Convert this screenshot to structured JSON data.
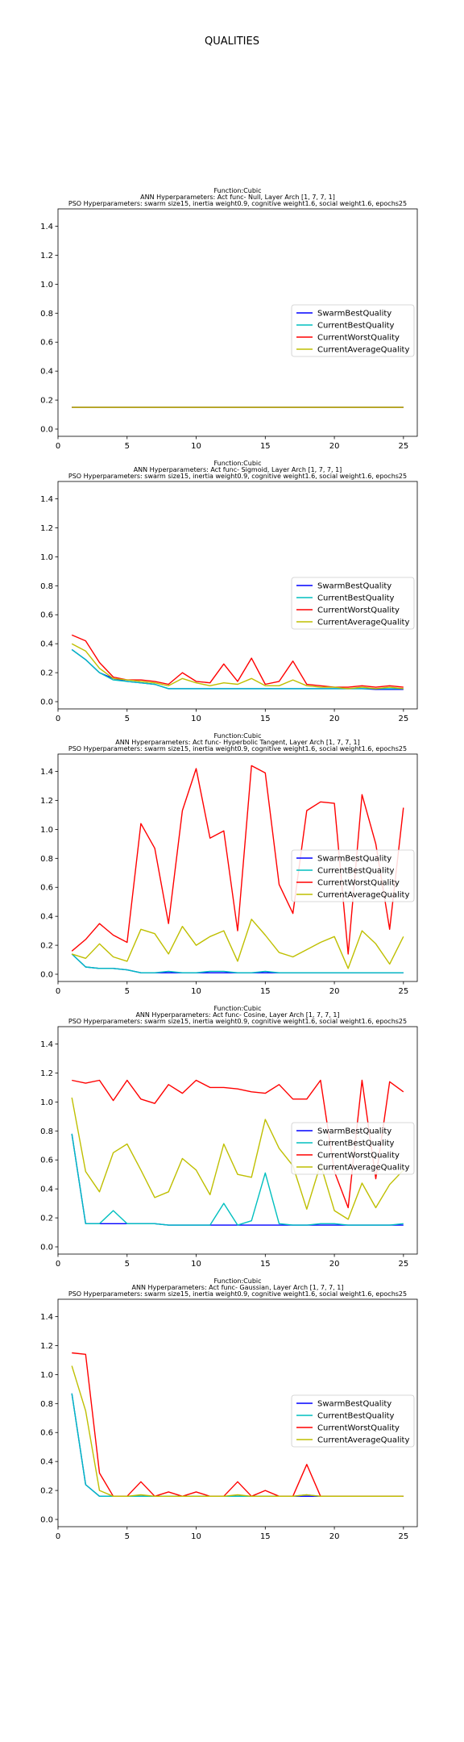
{
  "figure_title": "QUALITIES",
  "chart_data": [
    {
      "type": "line",
      "title_lines": [
        "Function:Cubic",
        "ANN Hyperparameters: Act func- Null, Layer Arch [1, 7, 7, 1]",
        "PSO Hyperparameters: swarm size15, inertia weight0.9, cognitive weight1.6, social weight1.6, epochs25"
      ],
      "x": [
        1,
        2,
        3,
        4,
        5,
        6,
        7,
        8,
        9,
        10,
        11,
        12,
        13,
        14,
        15,
        16,
        17,
        18,
        19,
        20,
        21,
        22,
        23,
        24,
        25
      ],
      "xlim": [
        0,
        26
      ],
      "ylim": [
        -0.05,
        1.52
      ],
      "xticks": [
        0,
        5,
        10,
        15,
        20,
        25
      ],
      "yticks": [
        "0.0",
        "0.2",
        "0.4",
        "0.6",
        "0.8",
        "1.0",
        "1.2",
        "1.4"
      ],
      "legend_position": "center-right",
      "series": [
        {
          "name": "SwarmBestQuality",
          "color": "#0000ff",
          "values": [
            0.15,
            0.15,
            0.15,
            0.15,
            0.15,
            0.15,
            0.15,
            0.15,
            0.15,
            0.15,
            0.15,
            0.15,
            0.15,
            0.15,
            0.15,
            0.15,
            0.15,
            0.15,
            0.15,
            0.15,
            0.15,
            0.15,
            0.15,
            0.15,
            0.15
          ]
        },
        {
          "name": "CurrentBestQuality",
          "color": "#00bfbf",
          "values": [
            0.15,
            0.15,
            0.15,
            0.15,
            0.15,
            0.15,
            0.15,
            0.15,
            0.15,
            0.15,
            0.15,
            0.15,
            0.15,
            0.15,
            0.15,
            0.15,
            0.15,
            0.15,
            0.15,
            0.15,
            0.15,
            0.15,
            0.15,
            0.15,
            0.15
          ]
        },
        {
          "name": "CurrentWorstQuality",
          "color": "#ff0000",
          "values": [
            0.15,
            0.15,
            0.15,
            0.15,
            0.15,
            0.15,
            0.15,
            0.15,
            0.15,
            0.15,
            0.15,
            0.15,
            0.15,
            0.15,
            0.15,
            0.15,
            0.15,
            0.15,
            0.15,
            0.15,
            0.15,
            0.15,
            0.15,
            0.15,
            0.15
          ]
        },
        {
          "name": "CurrentAverageQuality",
          "color": "#bfbf00",
          "values": [
            0.15,
            0.15,
            0.15,
            0.15,
            0.15,
            0.15,
            0.15,
            0.15,
            0.15,
            0.15,
            0.15,
            0.15,
            0.15,
            0.15,
            0.15,
            0.15,
            0.15,
            0.15,
            0.15,
            0.15,
            0.15,
            0.15,
            0.15,
            0.15,
            0.15
          ]
        }
      ]
    },
    {
      "type": "line",
      "title_lines": [
        "Function:Cubic",
        "ANN Hyperparameters: Act func- Sigmoid, Layer Arch [1, 7, 7, 1]",
        "PSO Hyperparameters: swarm size15, inertia weight0.9, cognitive weight1.6, social weight1.6, epochs25"
      ],
      "x": [
        1,
        2,
        3,
        4,
        5,
        6,
        7,
        8,
        9,
        10,
        11,
        12,
        13,
        14,
        15,
        16,
        17,
        18,
        19,
        20,
        21,
        22,
        23,
        24,
        25
      ],
      "xlim": [
        0,
        26
      ],
      "ylim": [
        -0.05,
        1.52
      ],
      "xticks": [
        0,
        5,
        10,
        15,
        20,
        25
      ],
      "yticks": [
        "0.0",
        "0.2",
        "0.4",
        "0.6",
        "0.8",
        "1.0",
        "1.2",
        "1.4"
      ],
      "legend_position": "center-right",
      "series": [
        {
          "name": "SwarmBestQuality",
          "color": "#0000ff",
          "values": [
            0.36,
            0.29,
            0.2,
            0.16,
            0.14,
            0.13,
            0.12,
            0.09,
            0.09,
            0.09,
            0.09,
            0.09,
            0.09,
            0.09,
            0.09,
            0.09,
            0.09,
            0.09,
            0.09,
            0.09,
            0.09,
            0.09,
            0.085,
            0.085,
            0.085
          ]
        },
        {
          "name": "CurrentBestQuality",
          "color": "#00bfbf",
          "values": [
            0.36,
            0.29,
            0.2,
            0.15,
            0.14,
            0.13,
            0.12,
            0.09,
            0.09,
            0.09,
            0.09,
            0.09,
            0.09,
            0.09,
            0.09,
            0.09,
            0.09,
            0.09,
            0.09,
            0.09,
            0.09,
            0.09,
            0.09,
            0.09,
            0.09
          ]
        },
        {
          "name": "CurrentWorstQuality",
          "color": "#ff0000",
          "values": [
            0.46,
            0.42,
            0.27,
            0.17,
            0.15,
            0.15,
            0.14,
            0.12,
            0.2,
            0.14,
            0.13,
            0.26,
            0.14,
            0.3,
            0.12,
            0.14,
            0.28,
            0.12,
            0.11,
            0.1,
            0.1,
            0.11,
            0.1,
            0.11,
            0.1
          ]
        },
        {
          "name": "CurrentAverageQuality",
          "color": "#bfbf00",
          "values": [
            0.4,
            0.35,
            0.23,
            0.16,
            0.15,
            0.14,
            0.13,
            0.11,
            0.16,
            0.13,
            0.11,
            0.13,
            0.12,
            0.16,
            0.11,
            0.11,
            0.15,
            0.11,
            0.1,
            0.1,
            0.09,
            0.1,
            0.09,
            0.1,
            0.09
          ]
        }
      ]
    },
    {
      "type": "line",
      "title_lines": [
        "Function:Cubic",
        "ANN Hyperparameters: Act func- Hyperbolic Tangent, Layer Arch [1, 7, 7, 1]",
        "PSO Hyperparameters: swarm size15, inertia weight0.9, cognitive weight1.6, social weight1.6, epochs25"
      ],
      "x": [
        1,
        2,
        3,
        4,
        5,
        6,
        7,
        8,
        9,
        10,
        11,
        12,
        13,
        14,
        15,
        16,
        17,
        18,
        19,
        20,
        21,
        22,
        23,
        24,
        25
      ],
      "xlim": [
        0,
        26
      ],
      "ylim": [
        -0.05,
        1.52
      ],
      "xticks": [
        0,
        5,
        10,
        15,
        20,
        25
      ],
      "yticks": [
        "0.0",
        "0.2",
        "0.4",
        "0.6",
        "0.8",
        "1.0",
        "1.2",
        "1.4"
      ],
      "legend_position": "center-right",
      "series": [
        {
          "name": "SwarmBestQuality",
          "color": "#0000ff",
          "values": [
            0.14,
            0.05,
            0.04,
            0.04,
            0.03,
            0.01,
            0.01,
            0.01,
            0.01,
            0.01,
            0.01,
            0.01,
            0.01,
            0.01,
            0.01,
            0.01,
            0.01,
            0.01,
            0.01,
            0.01,
            0.01,
            0.01,
            0.01,
            0.01,
            0.01
          ]
        },
        {
          "name": "CurrentBestQuality",
          "color": "#00bfbf",
          "values": [
            0.14,
            0.05,
            0.04,
            0.04,
            0.03,
            0.01,
            0.01,
            0.02,
            0.01,
            0.01,
            0.02,
            0.02,
            0.01,
            0.01,
            0.02,
            0.01,
            0.01,
            0.01,
            0.01,
            0.01,
            0.01,
            0.01,
            0.01,
            0.01,
            0.01
          ]
        },
        {
          "name": "CurrentWorstQuality",
          "color": "#ff0000",
          "values": [
            0.16,
            0.24,
            0.35,
            0.27,
            0.22,
            1.04,
            0.87,
            0.35,
            1.13,
            1.42,
            0.94,
            0.99,
            0.3,
            1.44,
            1.39,
            0.62,
            0.42,
            1.13,
            1.19,
            1.18,
            0.14,
            1.24,
            0.9,
            0.31,
            1.15
          ]
        },
        {
          "name": "CurrentAverageQuality",
          "color": "#bfbf00",
          "values": [
            0.14,
            0.11,
            0.21,
            0.12,
            0.09,
            0.31,
            0.28,
            0.14,
            0.33,
            0.2,
            0.26,
            0.3,
            0.09,
            0.38,
            0.27,
            0.15,
            0.12,
            0.17,
            0.22,
            0.26,
            0.04,
            0.3,
            0.21,
            0.07,
            0.26
          ]
        }
      ]
    },
    {
      "type": "line",
      "title_lines": [
        "Function:Cubic",
        "ANN Hyperparameters: Act func- Cosine, Layer Arch [1, 7, 7, 1]",
        "PSO Hyperparameters: swarm size15, inertia weight0.9, cognitive weight1.6, social weight1.6, epochs25"
      ],
      "x": [
        1,
        2,
        3,
        4,
        5,
        6,
        7,
        8,
        9,
        10,
        11,
        12,
        13,
        14,
        15,
        16,
        17,
        18,
        19,
        20,
        21,
        22,
        23,
        24,
        25
      ],
      "xlim": [
        0,
        26
      ],
      "ylim": [
        -0.05,
        1.52
      ],
      "xticks": [
        0,
        5,
        10,
        15,
        20,
        25
      ],
      "yticks": [
        "0.0",
        "0.2",
        "0.4",
        "0.6",
        "0.8",
        "1.0",
        "1.2",
        "1.4"
      ],
      "legend_position": "center-right",
      "series": [
        {
          "name": "SwarmBestQuality",
          "color": "#0000ff",
          "values": [
            0.78,
            0.16,
            0.16,
            0.16,
            0.16,
            0.16,
            0.16,
            0.15,
            0.15,
            0.15,
            0.15,
            0.15,
            0.15,
            0.15,
            0.15,
            0.15,
            0.15,
            0.15,
            0.15,
            0.15,
            0.15,
            0.15,
            0.15,
            0.15,
            0.15
          ]
        },
        {
          "name": "CurrentBestQuality",
          "color": "#00bfbf",
          "values": [
            0.78,
            0.16,
            0.16,
            0.25,
            0.16,
            0.16,
            0.16,
            0.15,
            0.15,
            0.15,
            0.15,
            0.3,
            0.15,
            0.18,
            0.51,
            0.16,
            0.15,
            0.15,
            0.16,
            0.16,
            0.15,
            0.15,
            0.15,
            0.15,
            0.16
          ]
        },
        {
          "name": "CurrentWorstQuality",
          "color": "#ff0000",
          "values": [
            1.15,
            1.13,
            1.15,
            1.01,
            1.15,
            1.02,
            0.99,
            1.12,
            1.06,
            1.15,
            1.1,
            1.1,
            1.09,
            1.07,
            1.06,
            1.12,
            1.02,
            1.02,
            1.15,
            0.52,
            0.27,
            1.15,
            0.47,
            1.14,
            1.07
          ]
        },
        {
          "name": "CurrentAverageQuality",
          "color": "#bfbf00",
          "values": [
            1.03,
            0.52,
            0.38,
            0.65,
            0.71,
            0.53,
            0.34,
            0.38,
            0.61,
            0.53,
            0.36,
            0.71,
            0.5,
            0.48,
            0.88,
            0.68,
            0.56,
            0.26,
            0.57,
            0.25,
            0.19,
            0.44,
            0.27,
            0.43,
            0.53
          ]
        }
      ]
    },
    {
      "type": "line",
      "title_lines": [
        "Function:Cubic",
        "ANN Hyperparameters: Act func- Gaussian, Layer Arch [1, 7, 7, 1]",
        "PSO Hyperparameters: swarm size15, inertia weight0.9, cognitive weight1.6, social weight1.6, epochs25"
      ],
      "x": [
        1,
        2,
        3,
        4,
        5,
        6,
        7,
        8,
        9,
        10,
        11,
        12,
        13,
        14,
        15,
        16,
        17,
        18,
        19,
        20,
        21,
        22,
        23,
        24,
        25
      ],
      "xlim": [
        0,
        26
      ],
      "ylim": [
        -0.05,
        1.52
      ],
      "xticks": [
        0,
        5,
        10,
        15,
        20,
        25
      ],
      "yticks": [
        "0.0",
        "0.2",
        "0.4",
        "0.6",
        "0.8",
        "1.0",
        "1.2",
        "1.4"
      ],
      "legend_position": "center-right",
      "series": [
        {
          "name": "SwarmBestQuality",
          "color": "#0000ff",
          "values": [
            0.87,
            0.24,
            0.16,
            0.16,
            0.16,
            0.16,
            0.16,
            0.16,
            0.16,
            0.16,
            0.16,
            0.16,
            0.16,
            0.16,
            0.16,
            0.16,
            0.16,
            0.16,
            0.16,
            0.16,
            0.16,
            0.16,
            0.16,
            0.16,
            0.16
          ]
        },
        {
          "name": "CurrentBestQuality",
          "color": "#00bfbf",
          "values": [
            0.87,
            0.24,
            0.16,
            0.16,
            0.16,
            0.16,
            0.16,
            0.16,
            0.16,
            0.16,
            0.16,
            0.16,
            0.16,
            0.16,
            0.16,
            0.16,
            0.16,
            0.17,
            0.16,
            0.16,
            0.16,
            0.16,
            0.16,
            0.16,
            0.16
          ]
        },
        {
          "name": "CurrentWorstQuality",
          "color": "#ff0000",
          "values": [
            1.15,
            1.14,
            0.32,
            0.16,
            0.16,
            0.26,
            0.16,
            0.19,
            0.16,
            0.19,
            0.16,
            0.16,
            0.26,
            0.16,
            0.2,
            0.16,
            0.16,
            0.38,
            0.16,
            0.16,
            0.16,
            0.16,
            0.16,
            0.16,
            0.16
          ]
        },
        {
          "name": "CurrentAverageQuality",
          "color": "#bfbf00",
          "values": [
            1.06,
            0.75,
            0.2,
            0.16,
            0.16,
            0.17,
            0.16,
            0.16,
            0.16,
            0.16,
            0.16,
            0.16,
            0.17,
            0.16,
            0.16,
            0.16,
            0.16,
            0.17,
            0.16,
            0.16,
            0.16,
            0.16,
            0.16,
            0.16,
            0.16
          ]
        }
      ]
    }
  ]
}
